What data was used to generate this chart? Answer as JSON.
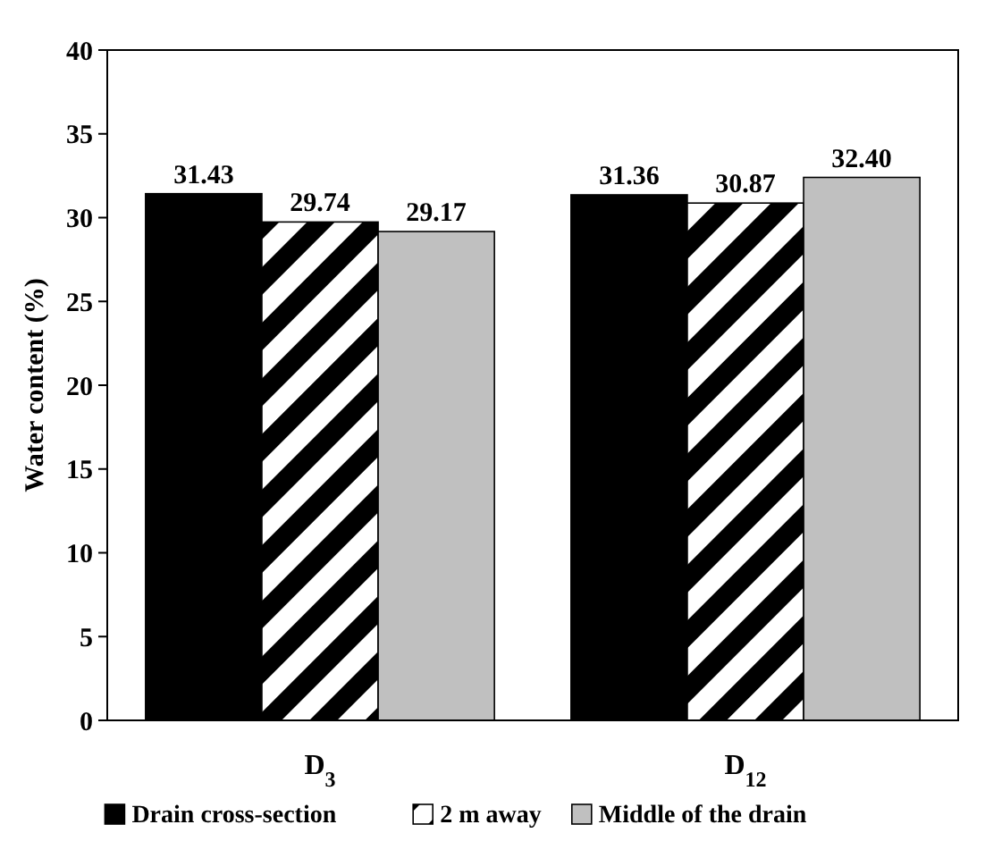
{
  "chart_data": {
    "type": "bar",
    "ylabel": "Water content (%)",
    "categories": [
      "D$_{3}$",
      "D$_{12}$"
    ],
    "series": [
      {
        "name": "Drain cross-section",
        "color": "#000000",
        "values": [
          31.43,
          31.36
        ]
      },
      {
        "name": "2 m away",
        "color": "#000000",
        "values": [
          29.74,
          30.87
        ]
      },
      {
        "name": "Middle of the drain",
        "color": "#c0c0c0",
        "values": [
          29.17,
          32.4
        ]
      }
    ],
    "value_labels": [
      [
        "31.43",
        "31.36"
      ],
      [
        "29.74",
        "30.87"
      ],
      [
        "29.17",
        "32.40"
      ]
    ],
    "ylim": [
      0,
      40
    ],
    "yticks": [
      0,
      5,
      10,
      15,
      20,
      25,
      30,
      35,
      40
    ],
    "grid": false,
    "legend": "bottom"
  }
}
